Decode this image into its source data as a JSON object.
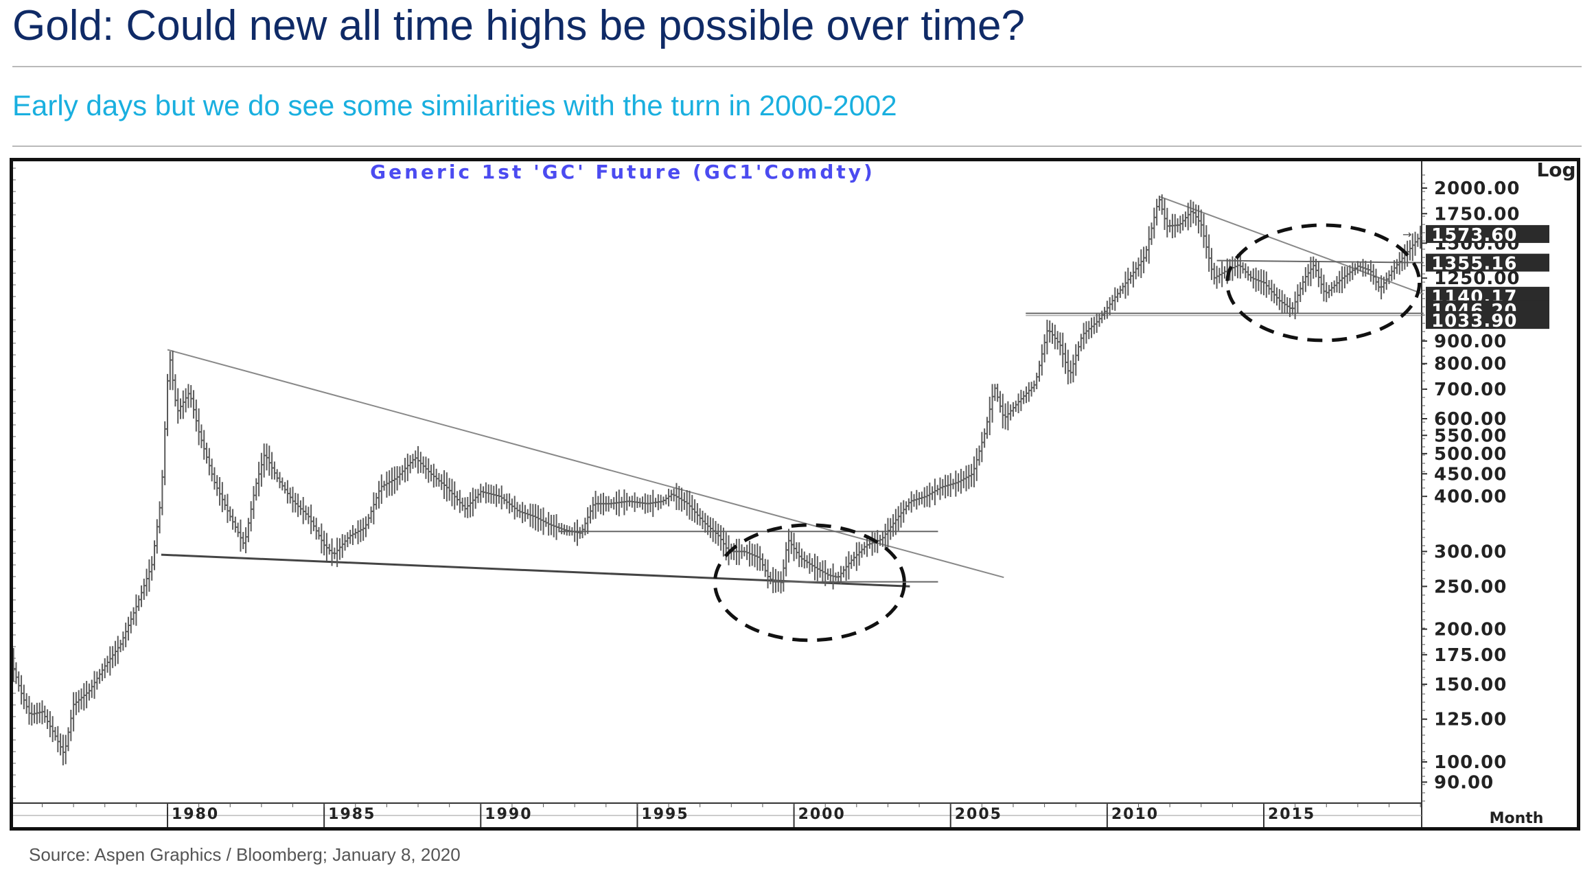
{
  "header": {
    "title": "Gold: Could new all time highs be possible over time?",
    "subtitle": "Early days but we do see some similarities with the turn in 2000-2002"
  },
  "footer": {
    "source": "Source: Aspen Graphics / Bloomberg; January 8, 2020"
  },
  "colors": {
    "title": "#0f2a66",
    "subtitle": "#19afdf",
    "chart_title": "#4b4bf0",
    "bars": "#5a5a5a",
    "badge_bg": "#2b2b2b",
    "badge_text": "#ffffff"
  },
  "chart_data": {
    "type": "bar",
    "subtype": "monthly price bars (OHLC)",
    "title": "Generic 1st 'GC' Future (GC1'Comdty)",
    "scale": "Log",
    "period": "Month",
    "x_ticks": [
      "1980",
      "1985",
      "1990",
      "1995",
      "2000",
      "2005",
      "2010",
      "2015"
    ],
    "xlim": [
      1975,
      2020.1
    ],
    "y_ticks": [
      "2000.00",
      "1750.00",
      "1500.00",
      "1250.00",
      "900.00",
      "800.00",
      "700.00",
      "600.00",
      "550.00",
      "500.00",
      "450.00",
      "400.00",
      "300.00",
      "250.00",
      "200.00",
      "175.00",
      "150.00",
      "125.00",
      "100.00",
      "90.00"
    ],
    "y_tick_values": [
      2000,
      1750,
      1500,
      1250,
      900,
      800,
      700,
      600,
      550,
      500,
      450,
      400,
      300,
      250,
      200,
      175,
      150,
      125,
      100,
      90
    ],
    "ylim": [
      82,
      2300
    ],
    "highlighted_levels": [
      {
        "label": "1573.60",
        "value": 1573.6
      },
      {
        "label": "1355.16",
        "value": 1355.16
      },
      {
        "label": "1140.17",
        "value": 1140.17
      },
      {
        "label": "1046.20",
        "value": 1046.2
      },
      {
        "label": "1033.90",
        "value": 1033.9
      }
    ],
    "price_path": [
      [
        1975.0,
        170
      ],
      [
        1975.3,
        145
      ],
      [
        1975.6,
        128
      ],
      [
        1976.0,
        130
      ],
      [
        1976.4,
        115
      ],
      [
        1976.7,
        104
      ],
      [
        1977.0,
        135
      ],
      [
        1977.5,
        145
      ],
      [
        1978.0,
        165
      ],
      [
        1978.5,
        185
      ],
      [
        1979.0,
        225
      ],
      [
        1979.5,
        280
      ],
      [
        1979.8,
        400
      ],
      [
        1980.05,
        850
      ],
      [
        1980.3,
        620
      ],
      [
        1980.7,
        690
      ],
      [
        1981.0,
        560
      ],
      [
        1981.5,
        430
      ],
      [
        1982.0,
        360
      ],
      [
        1982.45,
        310
      ],
      [
        1982.8,
        420
      ],
      [
        1983.1,
        500
      ],
      [
        1983.5,
        440
      ],
      [
        1984.0,
        390
      ],
      [
        1984.5,
        360
      ],
      [
        1985.0,
        310
      ],
      [
        1985.3,
        295
      ],
      [
        1985.8,
        325
      ],
      [
        1986.3,
        340
      ],
      [
        1986.8,
        420
      ],
      [
        1987.3,
        440
      ],
      [
        1987.9,
        490
      ],
      [
        1988.4,
        450
      ],
      [
        1988.9,
        420
      ],
      [
        1989.5,
        375
      ],
      [
        1990.0,
        410
      ],
      [
        1990.6,
        400
      ],
      [
        1991.2,
        370
      ],
      [
        1991.7,
        360
      ],
      [
        1992.2,
        345
      ],
      [
        1992.7,
        335
      ],
      [
        1993.2,
        330
      ],
      [
        1993.6,
        385
      ],
      [
        1994.1,
        385
      ],
      [
        1994.7,
        390
      ],
      [
        1995.3,
        385
      ],
      [
        1995.8,
        390
      ],
      [
        1996.1,
        405
      ],
      [
        1996.6,
        385
      ],
      [
        1997.1,
        350
      ],
      [
        1997.6,
        325
      ],
      [
        1997.9,
        300
      ],
      [
        1998.4,
        300
      ],
      [
        1998.9,
        290
      ],
      [
        1999.2,
        260
      ],
      [
        1999.6,
        255
      ],
      [
        1999.8,
        320
      ],
      [
        2000.2,
        290
      ],
      [
        2000.7,
        275
      ],
      [
        2001.1,
        265
      ],
      [
        2001.4,
        262
      ],
      [
        2001.8,
        285
      ],
      [
        2002.3,
        310
      ],
      [
        2002.8,
        320
      ],
      [
        2003.2,
        350
      ],
      [
        2003.7,
        390
      ],
      [
        2004.2,
        400
      ],
      [
        2004.7,
        420
      ],
      [
        2005.2,
        430
      ],
      [
        2005.7,
        450
      ],
      [
        2006.1,
        560
      ],
      [
        2006.4,
        710
      ],
      [
        2006.7,
        600
      ],
      [
        2007.2,
        660
      ],
      [
        2007.7,
        720
      ],
      [
        2008.1,
        960
      ],
      [
        2008.5,
        880
      ],
      [
        2008.8,
        750
      ],
      [
        2009.2,
        930
      ],
      [
        2009.7,
        1000
      ],
      [
        2010.2,
        1120
      ],
      [
        2010.7,
        1250
      ],
      [
        2011.2,
        1400
      ],
      [
        2011.65,
        1900
      ],
      [
        2011.9,
        1640
      ],
      [
        2012.3,
        1650
      ],
      [
        2012.7,
        1780
      ],
      [
        2013.0,
        1650
      ],
      [
        2013.4,
        1250
      ],
      [
        2013.8,
        1300
      ],
      [
        2014.2,
        1340
      ],
      [
        2014.6,
        1250
      ],
      [
        2015.0,
        1220
      ],
      [
        2015.5,
        1110
      ],
      [
        2015.9,
        1060
      ],
      [
        2016.3,
        1250
      ],
      [
        2016.6,
        1340
      ],
      [
        2016.95,
        1150
      ],
      [
        2017.5,
        1250
      ],
      [
        2018.0,
        1330
      ],
      [
        2018.4,
        1300
      ],
      [
        2018.7,
        1180
      ],
      [
        2019.1,
        1300
      ],
      [
        2019.5,
        1410
      ],
      [
        2019.8,
        1500
      ],
      [
        2020.03,
        1573
      ]
    ]
  }
}
